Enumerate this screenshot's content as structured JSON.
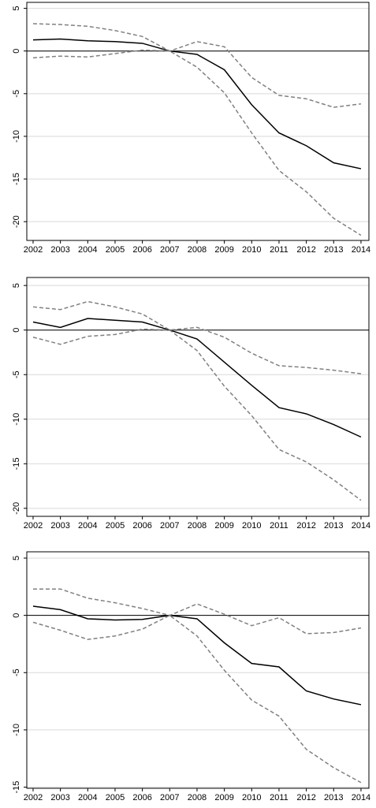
{
  "chart_data": [
    {
      "type": "line",
      "x": [
        2002,
        2003,
        2004,
        2005,
        2006,
        2007,
        2008,
        2009,
        2010,
        2011,
        2012,
        2013,
        2014
      ],
      "xlim": [
        2001.77,
        2014.29
      ],
      "xticks": [
        2002,
        2003,
        2004,
        2005,
        2006,
        2007,
        2008,
        2009,
        2010,
        2011,
        2012,
        2013,
        2014
      ],
      "ylim": [
        -22.2,
        5.7
      ],
      "yticks": [
        -20,
        -15,
        -10,
        -5,
        0,
        5
      ],
      "grid": true,
      "hline": 0,
      "series": [
        {
          "color": "#000000",
          "style": "solid",
          "values": [
            1.3,
            1.4,
            1.2,
            1.1,
            0.9,
            0,
            -0.4,
            -2.2,
            -6.3,
            -9.6,
            -11.1,
            -13.1,
            -13.8
          ]
        },
        {
          "color": "#808080",
          "style": "dashed",
          "values": [
            3.2,
            3.1,
            2.9,
            2.4,
            1.7,
            0,
            1.1,
            0.5,
            -3.1,
            -5.2,
            -5.6,
            -6.6,
            -6.2
          ]
        },
        {
          "color": "#808080",
          "style": "dashed",
          "values": [
            -0.8,
            -0.6,
            -0.7,
            -0.3,
            0.1,
            0,
            -1.9,
            -4.9,
            -9.6,
            -14,
            -16.5,
            -19.6,
            -21.6
          ]
        }
      ]
    },
    {
      "type": "line",
      "x": [
        2002,
        2003,
        2004,
        2005,
        2006,
        2007,
        2008,
        2009,
        2010,
        2011,
        2012,
        2013,
        2014
      ],
      "xlim": [
        2001.77,
        2014.29
      ],
      "xticks": [
        2002,
        2003,
        2004,
        2005,
        2006,
        2007,
        2008,
        2009,
        2010,
        2011,
        2012,
        2013,
        2014
      ],
      "ylim": [
        -20.9,
        5.9
      ],
      "yticks": [
        -20,
        -15,
        -10,
        -5,
        0,
        5
      ],
      "grid": true,
      "hline": 0,
      "series": [
        {
          "color": "#000000",
          "style": "solid",
          "values": [
            0.9,
            0.3,
            1.3,
            1.1,
            0.9,
            0,
            -1,
            -3.6,
            -6.2,
            -8.7,
            -9.4,
            -10.6,
            -12
          ]
        },
        {
          "color": "#808080",
          "style": "dashed",
          "values": [
            2.6,
            2.3,
            3.2,
            2.6,
            1.8,
            0,
            0.3,
            -0.8,
            -2.6,
            -4,
            -4.2,
            -4.5,
            -4.9
          ]
        },
        {
          "color": "#808080",
          "style": "dashed",
          "values": [
            -0.8,
            -1.6,
            -0.7,
            -0.5,
            0.1,
            0,
            -2.3,
            -6.3,
            -9.6,
            -13.4,
            -14.8,
            -16.8,
            -19.1
          ]
        }
      ]
    },
    {
      "type": "line",
      "x": [
        2002,
        2003,
        2004,
        2005,
        2006,
        2007,
        2008,
        2009,
        2010,
        2011,
        2012,
        2013,
        2014
      ],
      "xlim": [
        2001.77,
        2014.29
      ],
      "xticks": [
        2002,
        2003,
        2004,
        2005,
        2006,
        2007,
        2008,
        2009,
        2010,
        2011,
        2012,
        2013,
        2014
      ],
      "ylim": [
        -15.1,
        5.55
      ],
      "yticks": [
        -15,
        -10,
        -5,
        0,
        5
      ],
      "grid": true,
      "hline": 0,
      "series": [
        {
          "color": "#000000",
          "style": "solid",
          "values": [
            0.8,
            0.5,
            -0.3,
            -0.4,
            -0.35,
            0,
            -0.3,
            -2.4,
            -4.2,
            -4.5,
            -6.6,
            -7.3,
            -7.8
          ]
        },
        {
          "color": "#808080",
          "style": "dashed",
          "values": [
            2.3,
            2.3,
            1.5,
            1.1,
            0.6,
            0,
            1,
            0.1,
            -0.9,
            -0.2,
            -1.6,
            -1.5,
            -1.1
          ]
        },
        {
          "color": "#808080",
          "style": "dashed",
          "values": [
            -0.6,
            -1.3,
            -2.1,
            -1.8,
            -1.2,
            0,
            -1.8,
            -4.8,
            -7.4,
            -8.8,
            -11.7,
            -13.3,
            -14.6
          ]
        }
      ]
    }
  ]
}
